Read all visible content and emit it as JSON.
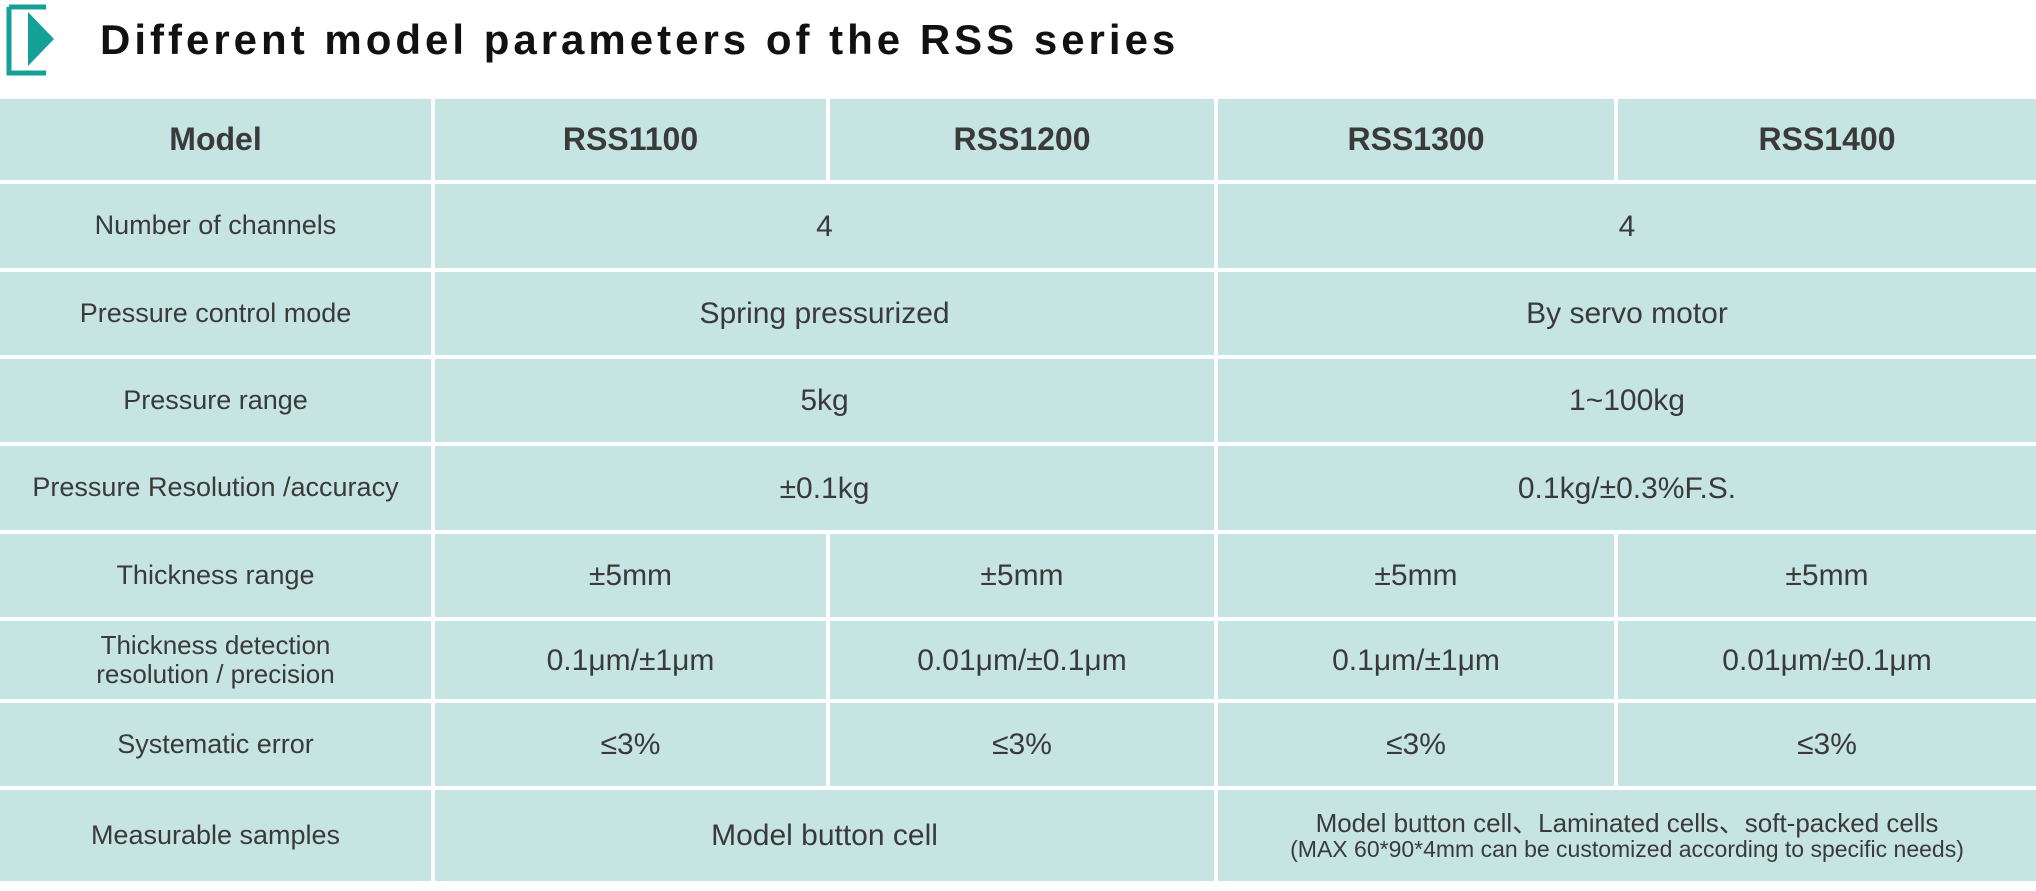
{
  "title": "Different model parameters of the RSS series",
  "accent": "#14a095",
  "header": {
    "label": "Model",
    "models": [
      "RSS1100",
      "RSS1200",
      "RSS1300",
      "RSS1400"
    ]
  },
  "rows": [
    {
      "label": "Number of channels",
      "groupA": "4",
      "groupB": "4"
    },
    {
      "label": "Pressure control mode",
      "groupA": "Spring pressurized",
      "groupB": "By servo motor"
    },
    {
      "label": "Pressure range",
      "groupA": "5kg",
      "groupB": "1~100kg"
    },
    {
      "label": "Pressure Resolution /accuracy",
      "groupA": "±0.1kg",
      "groupB": "0.1kg/±0.3%F.S."
    },
    {
      "label": "Thickness range",
      "values": [
        "±5mm",
        "±5mm",
        "±5mm",
        "±5mm"
      ]
    },
    {
      "label_line1": "Thickness detection",
      "label_line2": "resolution / precision",
      "values": [
        "0.1μm/±1μm",
        "0.01μm/±0.1μm",
        "0.1μm/±1μm",
        "0.01μm/±0.1μm"
      ]
    },
    {
      "label": "Systematic error",
      "values": [
        "≤3%",
        "≤3%",
        "≤3%",
        "≤3%"
      ]
    },
    {
      "label": "Measurable samples",
      "groupA": "Model button cell",
      "groupB_line1": "Model button cell、Laminated cells、soft-packed cells",
      "groupB_line2": "(MAX 60*90*4mm can be customized according to specific needs)"
    }
  ]
}
